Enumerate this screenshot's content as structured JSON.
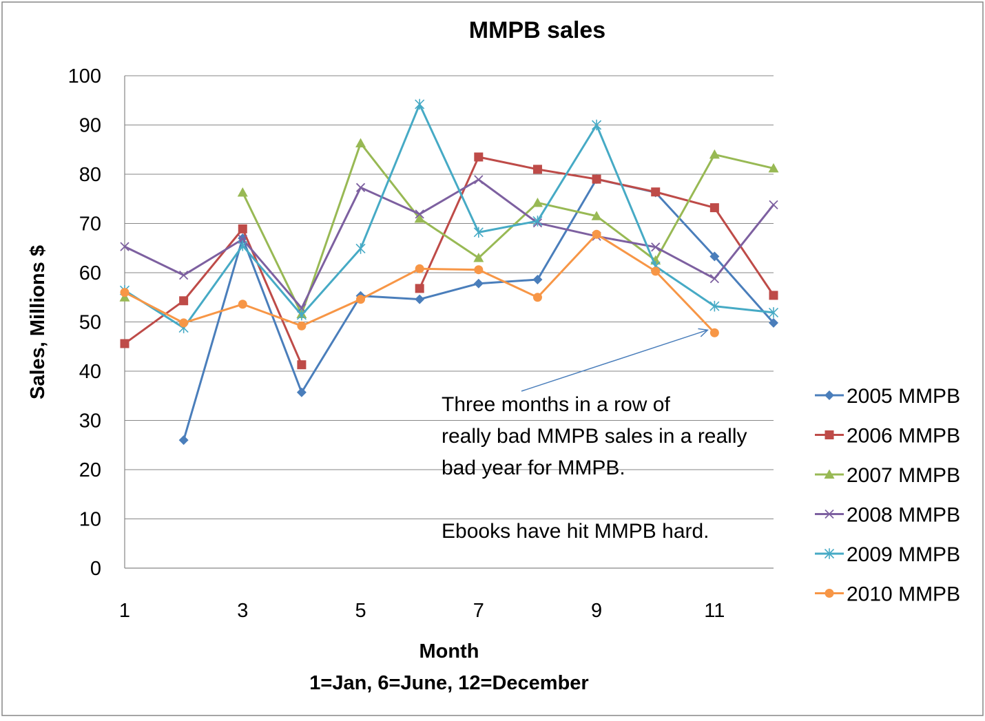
{
  "chart_data": {
    "type": "line",
    "title": "MMPB sales",
    "xlabel": "Month",
    "xlabel_sub": "1=Jan, 6=June, 12=December",
    "ylabel": "Sales, Millions $",
    "xlim": [
      1,
      12
    ],
    "ylim": [
      0,
      100
    ],
    "y_ticks": [
      0,
      10,
      20,
      30,
      40,
      50,
      60,
      70,
      80,
      90,
      100
    ],
    "x_ticks": [
      1,
      3,
      5,
      7,
      9,
      11
    ],
    "x": [
      1,
      2,
      3,
      4,
      5,
      6,
      7,
      8,
      9,
      10,
      11,
      12
    ],
    "grid": "horizontal",
    "legend_position": "right",
    "series": [
      {
        "name": "2005 MMPB",
        "color": "#4A7EBB",
        "marker": "diamond",
        "values": [
          null,
          26,
          67,
          35.7,
          55.3,
          54.6,
          57.8,
          58.6,
          79,
          76.3,
          63.3,
          49.8
        ]
      },
      {
        "name": "2006 MMPB",
        "color": "#BE4B48",
        "marker": "square",
        "values": [
          45.6,
          54.3,
          68.9,
          41.3,
          null,
          56.8,
          83.5,
          81,
          79,
          76.4,
          73.2,
          55.4
        ]
      },
      {
        "name": "2007 MMPB",
        "color": "#98B954",
        "marker": "triangle",
        "values": [
          55,
          null,
          76.3,
          51.6,
          86.3,
          71,
          63,
          74.2,
          71.5,
          62.5,
          84,
          81.2
        ]
      },
      {
        "name": "2008 MMPB",
        "color": "#7D60A0",
        "marker": "x",
        "values": [
          65.3,
          59.5,
          66.8,
          52.8,
          77.3,
          71.9,
          78.9,
          70.1,
          67.4,
          65.2,
          58.8,
          73.8
        ]
      },
      {
        "name": "2009 MMPB",
        "color": "#46AAC5",
        "marker": "star",
        "values": [
          56.4,
          48.8,
          65.5,
          51.4,
          64.9,
          94.2,
          68.2,
          70.5,
          90,
          61.3,
          53.2,
          51.9
        ]
      },
      {
        "name": "2010 MMPB",
        "color": "#F79646",
        "marker": "circle",
        "values": [
          56,
          49.8,
          53.6,
          49.2,
          54.6,
          60.8,
          60.6,
          55,
          67.8,
          60.3,
          47.8,
          null
        ]
      }
    ],
    "annotation": {
      "lines": [
        "Three months in a row of",
        "really bad MMPB sales in a really",
        "bad year for MMPB.",
        "",
        "Ebooks have hit MMPB hard."
      ],
      "arrow_color": "#4A7EBB",
      "points_to": {
        "x": 11,
        "y": 47.8
      }
    }
  }
}
